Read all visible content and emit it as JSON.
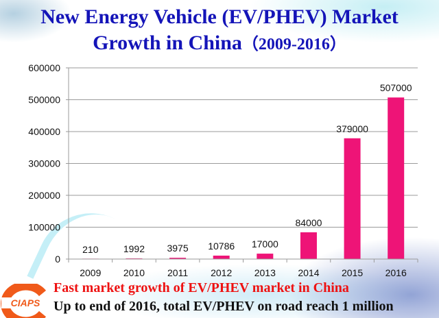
{
  "title": {
    "line1": "New Energy Vehicle (EV/PHEV) Market",
    "line2": "Growth in China",
    "range": "（2009-2016）"
  },
  "chart_data": {
    "type": "bar",
    "title": "New Energy Vehicle (EV/PHEV) Market Growth in China（2009-2016）",
    "xlabel": "",
    "ylabel": "",
    "categories": [
      "2009",
      "2010",
      "2011",
      "2012",
      "2013",
      "2014",
      "2015",
      "2016"
    ],
    "values": [
      210,
      1992,
      3975,
      10786,
      17000,
      84000,
      379000,
      507000
    ],
    "data_labels": [
      "210",
      "1992",
      "3975",
      "10786",
      "17000",
      "84000",
      "379000",
      "507000"
    ],
    "ylim": [
      0,
      600000
    ],
    "yticks": [
      0,
      100000,
      200000,
      300000,
      400000,
      500000,
      600000
    ],
    "ytick_labels": [
      "0",
      "100000",
      "200000",
      "300000",
      "400000",
      "500000",
      "600000"
    ],
    "grid": true,
    "legend": "none",
    "bar_color": "#ee1477"
  },
  "footer": {
    "line1": "Fast market growth of EV/PHEV market in China",
    "line2": "Up to end of 2016, total EV/PHEV on road reach 1 million"
  },
  "logo": {
    "text": "CIAPS",
    "color": "#f05a1a"
  },
  "colors": {
    "title": "#1414b8",
    "footer_highlight": "#ee1111"
  }
}
